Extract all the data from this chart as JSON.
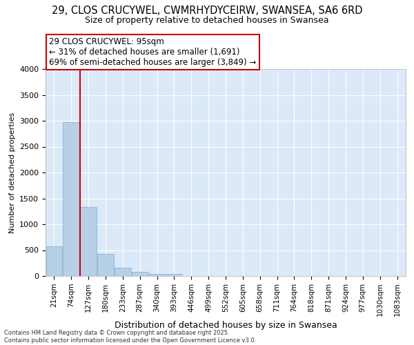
{
  "title1": "29, CLOS CRUCYWEL, CWMRHYDYCEIRW, SWANSEA, SA6 6RD",
  "title2": "Size of property relative to detached houses in Swansea",
  "xlabel": "Distribution of detached houses by size in Swansea",
  "ylabel": "Number of detached properties",
  "categories": [
    "21sqm",
    "74sqm",
    "127sqm",
    "180sqm",
    "233sqm",
    "287sqm",
    "340sqm",
    "393sqm",
    "446sqm",
    "499sqm",
    "552sqm",
    "605sqm",
    "658sqm",
    "711sqm",
    "764sqm",
    "818sqm",
    "871sqm",
    "924sqm",
    "977sqm",
    "1030sqm",
    "1083sqm"
  ],
  "values": [
    580,
    2970,
    1340,
    430,
    160,
    75,
    45,
    40,
    0,
    0,
    0,
    0,
    0,
    0,
    0,
    0,
    0,
    0,
    0,
    0,
    0
  ],
  "bar_color": "#b8cfe8",
  "bar_edge_color": "#7aadd4",
  "vline_x": 1.5,
  "vline_color": "#cc0000",
  "annotation_text": "29 CLOS CRUCYWEL: 95sqm\n← 31% of detached houses are smaller (1,691)\n69% of semi-detached houses are larger (3,849) →",
  "annotation_box_color": "#ffffff",
  "annotation_box_edgecolor": "#cc0000",
  "ylim": [
    0,
    4000
  ],
  "yticks": [
    0,
    500,
    1000,
    1500,
    2000,
    2500,
    3000,
    3500,
    4000
  ],
  "bg_color": "#dce9f8",
  "grid_color": "#ffffff",
  "footer1": "Contains HM Land Registry data © Crown copyright and database right 2025.",
  "footer2": "Contains public sector information licensed under the Open Government Licence v3.0."
}
